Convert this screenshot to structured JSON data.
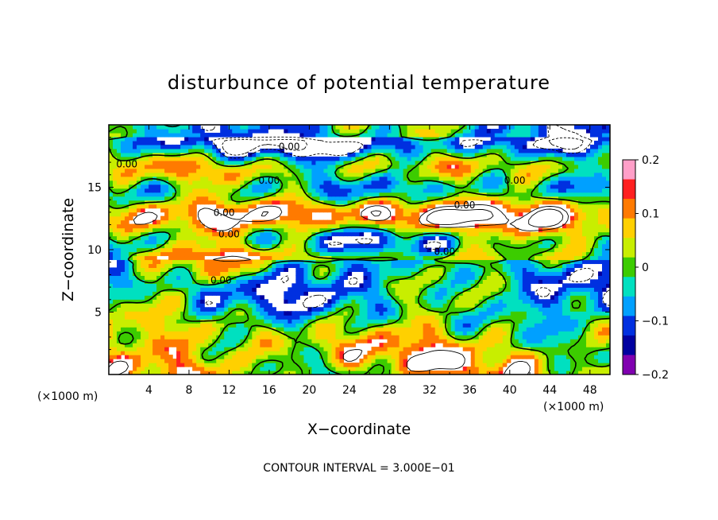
{
  "chart_data": {
    "type": "heatmap",
    "title": "disturbunce of potential temperature",
    "xlabel": "X−coordinate",
    "ylabel": "Z−coordinate",
    "x_unit_left": "(×1000 m)",
    "x_unit_right": "(×1000 m)",
    "footer": "CONTOUR INTERVAL = 3.000E−01",
    "xlim": [
      0,
      50
    ],
    "ylim": [
      0,
      20
    ],
    "x_ticks": [
      4,
      8,
      12,
      16,
      20,
      24,
      28,
      32,
      36,
      40,
      44,
      48
    ],
    "y_ticks": [
      5,
      10,
      15
    ],
    "colorbar": {
      "min": -0.2,
      "max": 0.2,
      "tick_values": [
        0.2,
        0.1,
        0,
        -0.1,
        -0.2
      ],
      "tick_labels": [
        "0.2",
        "0.1",
        "0",
        "−0.1",
        "−0.2"
      ],
      "colors": [
        "#ff9fc8",
        "#ff2020",
        "#ff7a00",
        "#ffd000",
        "#c8ee00",
        "#3ccc00",
        "#00e0c0",
        "#00a0ff",
        "#0030e0",
        "#0000a0",
        "#8000b0"
      ]
    },
    "contour_labels": [
      {
        "text": "0.00",
        "x": 1.8,
        "y": 16.6
      },
      {
        "text": "0.00",
        "x": 18.0,
        "y": 18.0
      },
      {
        "text": "0.00",
        "x": 16.0,
        "y": 15.3
      },
      {
        "text": "0.00",
        "x": 11.5,
        "y": 12.7
      },
      {
        "text": "0.00",
        "x": 12.0,
        "y": 11.0
      },
      {
        "text": "0.00",
        "x": 11.2,
        "y": 7.3
      },
      {
        "text": "0.00",
        "x": 33.5,
        "y": 9.6
      },
      {
        "text": "0.00",
        "x": 40.5,
        "y": 15.3
      },
      {
        "text": "0.00",
        "x": 35.5,
        "y": 13.3
      }
    ]
  }
}
